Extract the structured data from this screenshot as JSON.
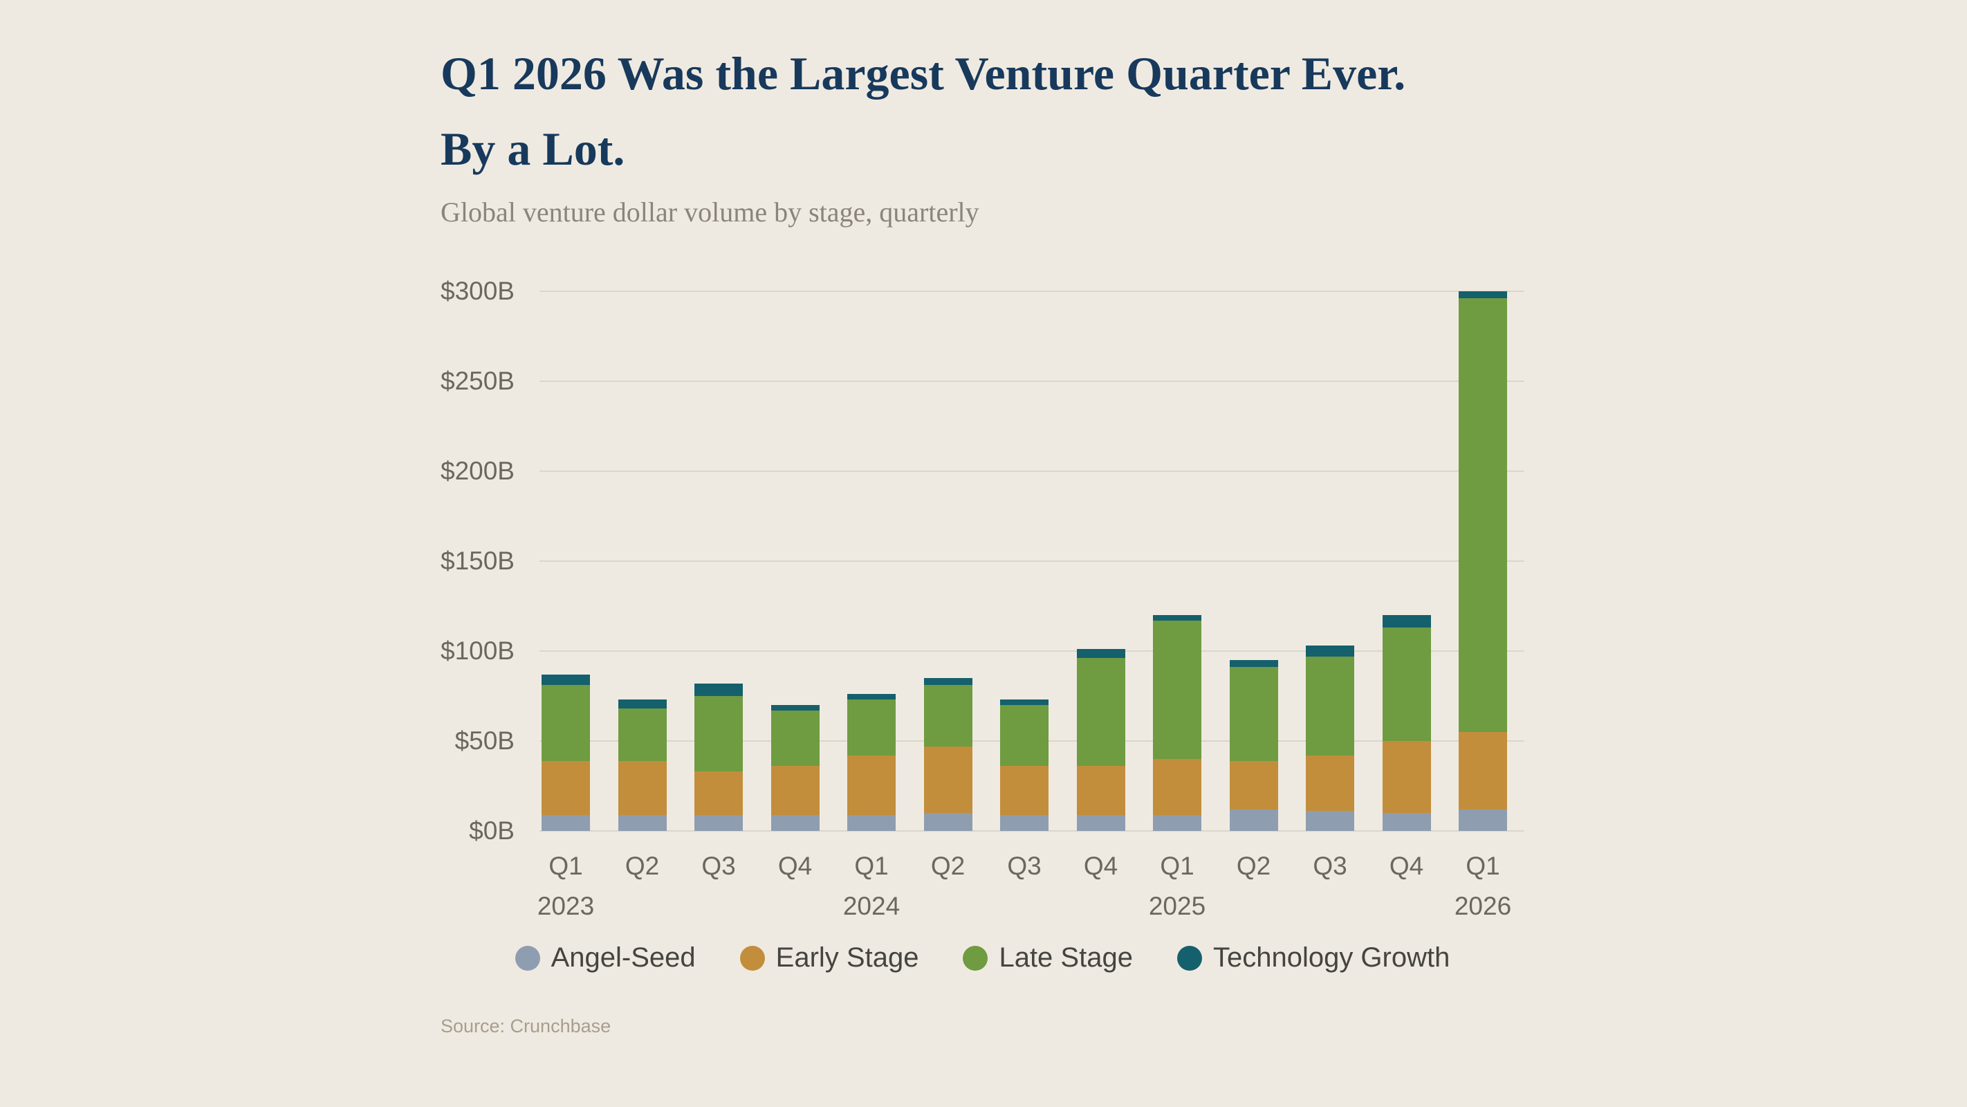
{
  "header": {
    "title_lines": [
      "Q1 2026 Was the Largest Venture Quarter Ever.",
      "By a Lot."
    ],
    "subtitle": "Global venture dollar volume by stage, quarterly"
  },
  "colors": {
    "background": "#EFEAE1",
    "title": "#17395C",
    "gridline": "#DCD6C9",
    "axis_text": "#6C675E"
  },
  "chart_data": {
    "type": "bar",
    "stacked": true,
    "title": "Q1 2026 Was the Largest Venture Quarter Ever. By a Lot.",
    "subtitle": "Global venture dollar volume by stage, quarterly",
    "categories": [
      "Q1",
      "Q2",
      "Q3",
      "Q4",
      "Q1",
      "Q2",
      "Q3",
      "Q4",
      "Q1",
      "Q2",
      "Q3",
      "Q4",
      "Q1"
    ],
    "year_labels": [
      {
        "index": 0,
        "label": "2023"
      },
      {
        "index": 4,
        "label": "2024"
      },
      {
        "index": 8,
        "label": "2025"
      },
      {
        "index": 12,
        "label": "2026"
      }
    ],
    "series": [
      {
        "name": "Angel-Seed",
        "color": "#8F9DB0",
        "values": [
          9,
          9,
          9,
          9,
          9,
          10,
          9,
          9,
          9,
          12,
          11,
          10,
          12
        ]
      },
      {
        "name": "Early Stage",
        "color": "#C28E3C",
        "values": [
          30,
          30,
          24,
          27,
          33,
          37,
          27,
          27,
          31,
          27,
          31,
          40,
          43
        ]
      },
      {
        "name": "Late Stage",
        "color": "#6F9B41",
        "values": [
          42,
          29,
          42,
          31,
          31,
          34,
          34,
          60,
          77,
          52,
          55,
          63,
          241
        ]
      },
      {
        "name": "Technology Growth",
        "color": "#15606D",
        "values": [
          6,
          5,
          7,
          3,
          3,
          4,
          3,
          5,
          3,
          4,
          6,
          7,
          4
        ]
      }
    ],
    "y_axis": {
      "min": 0,
      "max": 300,
      "tick_step": 50,
      "tick_labels": [
        "$0B",
        "$50B",
        "$100B",
        "$150B",
        "$200B",
        "$250B",
        "$300B"
      ],
      "unit": "billions USD"
    },
    "legend_position": "bottom",
    "grid": true
  },
  "footer": {
    "source": "Source: Crunchbase"
  }
}
